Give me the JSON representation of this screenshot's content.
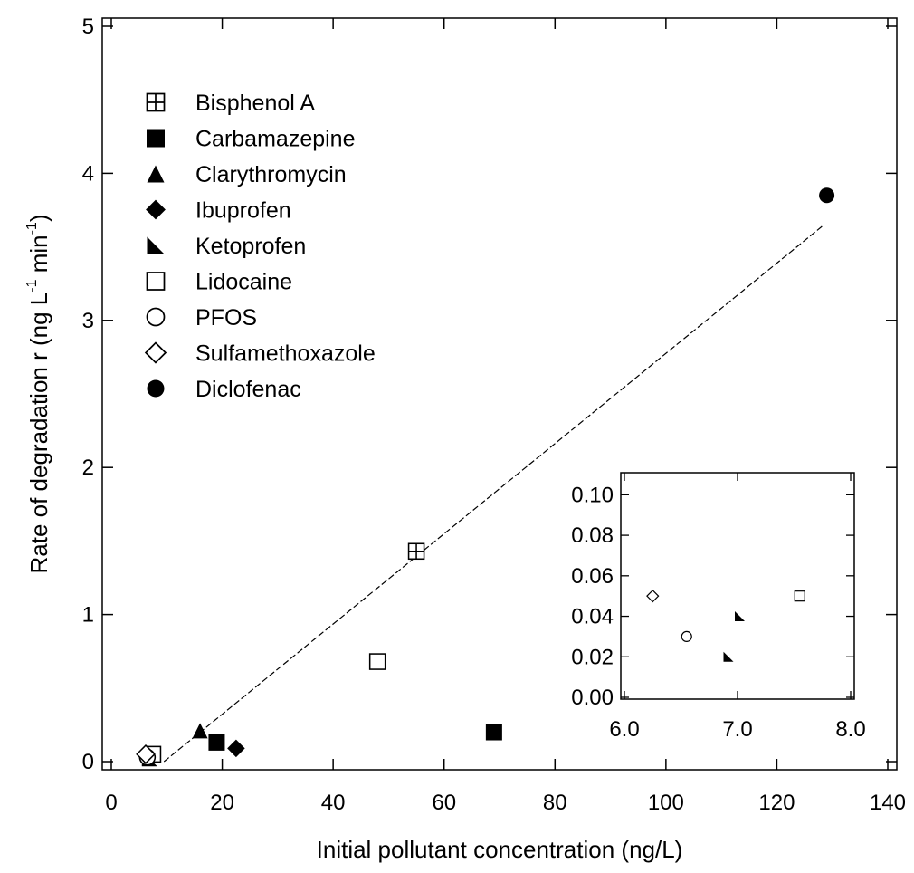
{
  "chart_data": [
    {
      "id": "main",
      "type": "scatter",
      "xlabel": "Initial pollutant concentration (ng/L)",
      "ylabel_main": "Rate of degradation r (ng L",
      "ylabel_exp": "-1",
      "ylabel_mid": " min",
      "ylabel_exp2": "-1",
      "ylabel_end": ")",
      "xlim": [
        0,
        140
      ],
      "ylim": [
        0,
        5
      ],
      "x_ticks": [
        0,
        20,
        40,
        60,
        80,
        100,
        120,
        140
      ],
      "x_tick_labels": [
        "0",
        "20",
        "40",
        "60",
        "80",
        "100",
        "120",
        "140"
      ],
      "y_ticks": [
        0,
        1,
        2,
        3,
        4,
        5
      ],
      "y_tick_labels": [
        "0",
        "1",
        "2",
        "3",
        "4",
        "5"
      ],
      "legend_position": "top-left",
      "series": [
        {
          "name": "Bisphenol A",
          "marker": "square-crosshair",
          "points": [
            [
              55,
              1.43
            ]
          ]
        },
        {
          "name": "Carbamazepine",
          "marker": "square-filled",
          "points": [
            [
              19,
              0.13
            ],
            [
              69,
              0.2
            ]
          ]
        },
        {
          "name": "Clarythromycin",
          "marker": "triangle-filled",
          "points": [
            [
              16,
              0.21
            ]
          ]
        },
        {
          "name": "Ibuprofen",
          "marker": "diamond-filled",
          "points": [
            [
              22.5,
              0.09
            ]
          ]
        },
        {
          "name": "Ketoprofen",
          "marker": "right-triangle-filled",
          "points": [
            [
              6.9,
              0.02
            ],
            [
              7.0,
              0.04
            ]
          ]
        },
        {
          "name": "Lidocaine",
          "marker": "square-open",
          "points": [
            [
              48,
              0.68
            ],
            [
              7.5,
              0.05
            ]
          ]
        },
        {
          "name": "PFOS",
          "marker": "circle-open",
          "points": [
            [
              6.5,
              0.03
            ]
          ]
        },
        {
          "name": "Sulfamethoxazole",
          "marker": "diamond-open",
          "points": [
            [
              6.2,
              0.05
            ]
          ]
        },
        {
          "name": "Diclofenac",
          "marker": "circle-filled",
          "points": [
            [
              129,
              3.85
            ]
          ]
        }
      ],
      "fit_line": {
        "style": "dashed",
        "points": [
          [
            9.5,
            0.0
          ],
          [
            128.5,
            3.65
          ]
        ]
      }
    },
    {
      "id": "inset",
      "type": "scatter",
      "xlim": [
        6.0,
        8.0
      ],
      "ylim": [
        0.0,
        0.11
      ],
      "x_ticks": [
        6.0,
        7.0,
        8.0
      ],
      "x_tick_labels": [
        "6.0",
        "7.0",
        "8.0"
      ],
      "y_ticks": [
        0.0,
        0.02,
        0.04,
        0.06,
        0.08,
        0.1
      ],
      "y_tick_labels": [
        "0.00",
        "0.02",
        "0.04",
        "0.06",
        "0.08",
        "0.10"
      ],
      "points": [
        {
          "series": "Sulfamethoxazole",
          "marker": "diamond-open",
          "x": 6.25,
          "y": 0.05
        },
        {
          "series": "PFOS",
          "marker": "circle-open",
          "x": 6.55,
          "y": 0.03
        },
        {
          "series": "Ketoprofen",
          "marker": "right-triangle-filled",
          "x": 6.92,
          "y": 0.02
        },
        {
          "series": "Ketoprofen",
          "marker": "right-triangle-filled",
          "x": 7.02,
          "y": 0.04
        },
        {
          "series": "Lidocaine",
          "marker": "square-open",
          "x": 7.55,
          "y": 0.05
        }
      ]
    }
  ]
}
